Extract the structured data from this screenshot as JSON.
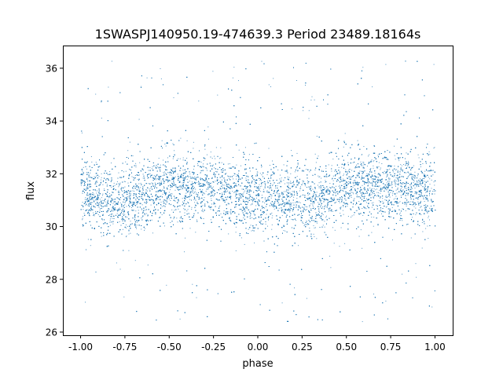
{
  "chart_data": {
    "type": "scatter",
    "title": "1SWASPJ140950.19-474639.3 Period 23489.18164s",
    "xlabel": "phase",
    "ylabel": "flux",
    "xlim": [
      -1.1,
      1.1
    ],
    "ylim": [
      25.88,
      36.86
    ],
    "xticks": [
      "-1.00",
      "-0.75",
      "-0.50",
      "-0.25",
      "0.00",
      "0.25",
      "0.50",
      "0.75",
      "1.00"
    ],
    "xtick_values": [
      -1,
      -0.75,
      -0.5,
      -0.25,
      0,
      0.25,
      0.5,
      0.75,
      1
    ],
    "yticks": [
      "26",
      "28",
      "30",
      "32",
      "34",
      "36"
    ],
    "ytick_values": [
      26,
      28,
      30,
      32,
      34,
      36
    ],
    "grid": false,
    "point_color": "#1f77b4",
    "trend": {
      "phase": [
        -1,
        -0.75,
        -0.5,
        -0.25,
        0,
        0.25,
        0.5,
        0.75,
        1
      ],
      "mean_flux": [
        31.2,
        31.0,
        31.5,
        31.5,
        31.1,
        31.0,
        31.5,
        31.5,
        31.2
      ]
    },
    "scatter_std": 0.65,
    "outlier_range": [
      26.3,
      36.3
    ]
  }
}
